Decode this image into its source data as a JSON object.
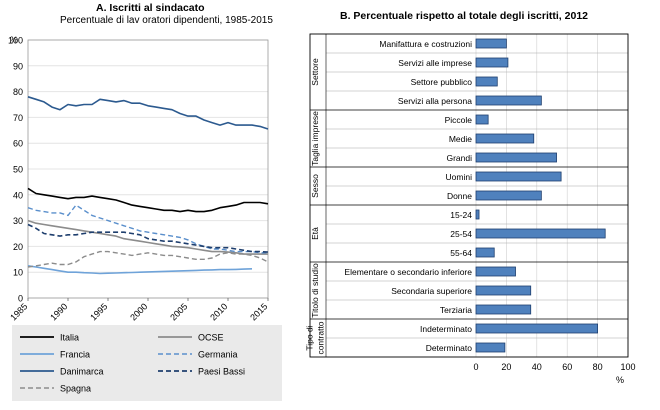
{
  "chart_data": [
    {
      "type": "line",
      "title": "A. Iscritti al sindacato",
      "subtitle": "Percentuale di lav oratori dipendenti, 1985-2015",
      "ylabel": "%",
      "ylim": [
        0,
        100
      ],
      "yticks": [
        0,
        10,
        20,
        30,
        40,
        50,
        60,
        70,
        80,
        90,
        100
      ],
      "xlim": [
        1985,
        2015
      ],
      "xticks": [
        1985,
        1990,
        1995,
        2000,
        2005,
        2010,
        2015
      ],
      "legend_position": "bottom",
      "series": [
        {
          "name": "Italia",
          "color": "#000000",
          "dash": "solid",
          "width": 1.6,
          "x": [
            1985,
            1986,
            1987,
            1988,
            1989,
            1990,
            1991,
            1992,
            1993,
            1994,
            1995,
            1996,
            1997,
            1998,
            1999,
            2000,
            2001,
            2002,
            2003,
            2004,
            2005,
            2006,
            2007,
            2008,
            2009,
            2010,
            2011,
            2012,
            2013,
            2014,
            2015
          ],
          "values": [
            42.5,
            40.5,
            40,
            39.5,
            39,
            38.5,
            39,
            39,
            39.5,
            39,
            38.5,
            38,
            37,
            36,
            35.5,
            35,
            34.5,
            34,
            34,
            33.5,
            34,
            33.5,
            33.5,
            34,
            35,
            35.5,
            36,
            37,
            37,
            37,
            36.5
          ]
        },
        {
          "name": "OCSE",
          "color": "#8c8c8c",
          "dash": "solid",
          "width": 1.6,
          "x": [
            1985,
            1986,
            1987,
            1988,
            1989,
            1990,
            1991,
            1992,
            1993,
            1994,
            1995,
            1996,
            1997,
            1998,
            1999,
            2000,
            2001,
            2002,
            2003,
            2004,
            2005,
            2006,
            2007,
            2008,
            2009,
            2010,
            2011,
            2012,
            2013,
            2014,
            2015
          ],
          "values": [
            30,
            29,
            28.5,
            28,
            27.5,
            27,
            26.5,
            26,
            25.5,
            25,
            24.5,
            24,
            23,
            22.5,
            22,
            21.5,
            21,
            20.5,
            20,
            19.8,
            19.5,
            19,
            18.5,
            18,
            18,
            17.8,
            17.5,
            17,
            17,
            17,
            17
          ]
        },
        {
          "name": "Francia",
          "color": "#6fa3d9",
          "dash": "solid",
          "width": 1.6,
          "x": [
            1985,
            1986,
            1987,
            1988,
            1989,
            1990,
            1991,
            1992,
            1993,
            1994,
            1995,
            1996,
            1997,
            1998,
            1999,
            2000,
            2001,
            2002,
            2003,
            2004,
            2005,
            2006,
            2007,
            2008,
            2009,
            2010,
            2011,
            2012,
            2013
          ],
          "values": [
            12.5,
            12,
            11.5,
            11,
            10.5,
            10,
            10,
            9.8,
            9.7,
            9.5,
            9.6,
            9.7,
            9.8,
            9.9,
            10,
            10.1,
            10.2,
            10.3,
            10.4,
            10.5,
            10.6,
            10.7,
            10.8,
            10.9,
            11,
            11,
            11.1,
            11.2,
            11.3
          ]
        },
        {
          "name": "Germania",
          "color": "#5a8fcc",
          "dash": "dashed",
          "width": 1.4,
          "x": [
            1985,
            1986,
            1987,
            1988,
            1989,
            1990,
            1991,
            1992,
            1993,
            1994,
            1995,
            1996,
            1997,
            1998,
            1999,
            2000,
            2001,
            2002,
            2003,
            2004,
            2005,
            2006,
            2007,
            2008,
            2009,
            2010,
            2011,
            2012,
            2013,
            2014,
            2015
          ],
          "values": [
            35,
            34,
            33.5,
            33,
            33,
            32,
            36,
            34,
            32,
            31,
            30,
            29,
            28,
            27,
            26,
            25.5,
            25,
            24.5,
            24,
            23.5,
            22.5,
            21,
            20,
            19,
            19,
            18.5,
            18,
            18,
            18,
            17.5,
            17.5
          ]
        },
        {
          "name": "Danimarca",
          "color": "#2c5a8f",
          "dash": "solid",
          "width": 1.6,
          "x": [
            1985,
            1986,
            1987,
            1988,
            1989,
            1990,
            1991,
            1992,
            1993,
            1994,
            1995,
            1996,
            1997,
            1998,
            1999,
            2000,
            2001,
            2002,
            2003,
            2004,
            2005,
            2006,
            2007,
            2008,
            2009,
            2010,
            2011,
            2012,
            2013,
            2014,
            2015
          ],
          "values": [
            78,
            77,
            76,
            74,
            73,
            75,
            74.5,
            75,
            75,
            77,
            76.5,
            76,
            76.5,
            75.5,
            75.5,
            74.5,
            74,
            73.5,
            73,
            71.5,
            70.5,
            70.5,
            69,
            68,
            67,
            68,
            67,
            67,
            67,
            66.5,
            65.5
          ]
        },
        {
          "name": "Paesi Bassi",
          "color": "#1f3f6e",
          "dash": "dashed",
          "width": 1.6,
          "x": [
            1985,
            1986,
            1987,
            1988,
            1989,
            1990,
            1991,
            1992,
            1993,
            1994,
            1995,
            1996,
            1997,
            1998,
            1999,
            2000,
            2001,
            2002,
            2003,
            2004,
            2005,
            2006,
            2007,
            2008,
            2009,
            2010,
            2011,
            2012,
            2013,
            2014,
            2015
          ],
          "values": [
            28.5,
            27,
            25,
            24.5,
            24,
            24.5,
            24.5,
            25,
            25.5,
            25.5,
            25.5,
            25.5,
            25.5,
            25,
            24.5,
            23,
            22.5,
            22,
            22,
            21.5,
            21,
            20.5,
            20,
            19.5,
            19.5,
            19.5,
            19,
            18.5,
            18,
            18,
            17.8
          ]
        },
        {
          "name": "Spagna",
          "color": "#8c8c8c",
          "dash": "dashed",
          "width": 1.4,
          "x": [
            1985,
            1986,
            1987,
            1988,
            1989,
            1990,
            1991,
            1992,
            1993,
            1994,
            1995,
            1996,
            1997,
            1998,
            1999,
            2000,
            2001,
            2002,
            2003,
            2004,
            2005,
            2006,
            2007,
            2008,
            2009,
            2010,
            2011,
            2012,
            2013,
            2014,
            2015
          ],
          "values": [
            12,
            12.5,
            13,
            13.5,
            13,
            13,
            14,
            16,
            17,
            18,
            18,
            17.5,
            17,
            16.5,
            17,
            17.5,
            17,
            16.5,
            16.5,
            16,
            15.5,
            15,
            15,
            15.5,
            17,
            17.5,
            17,
            17,
            16.5,
            15.5,
            14
          ]
        }
      ]
    },
    {
      "type": "bar",
      "orientation": "horizontal",
      "title": "B. Percentuale rispetto al totale degli iscritti, 2012",
      "xlabel": "%",
      "xlim": [
        0,
        100
      ],
      "xticks": [
        0,
        20,
        40,
        60,
        80,
        100
      ],
      "bar_color": "#4f81bd",
      "groups": [
        {
          "label": "Settore",
          "items": [
            {
              "label": "Manifattura e costruzioni",
              "value": 20
            },
            {
              "label": "Servizi alle imprese",
              "value": 21
            },
            {
              "label": "Settore pubblico",
              "value": 14
            },
            {
              "label": "Servizi alla persona",
              "value": 43
            }
          ]
        },
        {
          "label": "Taglia imprese",
          "items": [
            {
              "label": "Piccole",
              "value": 8
            },
            {
              "label": "Medie",
              "value": 38
            },
            {
              "label": "Grandi",
              "value": 53
            }
          ]
        },
        {
          "label": "Sesso",
          "items": [
            {
              "label": "Uomini",
              "value": 56
            },
            {
              "label": "Donne",
              "value": 43
            }
          ]
        },
        {
          "label": "Età",
          "items": [
            {
              "label": "15-24",
              "value": 2
            },
            {
              "label": "25-54",
              "value": 85
            },
            {
              "label": "55-64",
              "value": 12
            }
          ]
        },
        {
          "label": "Titolo di studio",
          "items": [
            {
              "label": "Elementare o secondario inferiore",
              "value": 26
            },
            {
              "label": "Secondaria superiore",
              "value": 36
            },
            {
              "label": "Terziaria",
              "value": 36
            }
          ]
        },
        {
          "label": "Tipo di contratto",
          "items": [
            {
              "label": "Indeterminato",
              "value": 80
            },
            {
              "label": "Determinato",
              "value": 19
            }
          ]
        }
      ]
    }
  ]
}
